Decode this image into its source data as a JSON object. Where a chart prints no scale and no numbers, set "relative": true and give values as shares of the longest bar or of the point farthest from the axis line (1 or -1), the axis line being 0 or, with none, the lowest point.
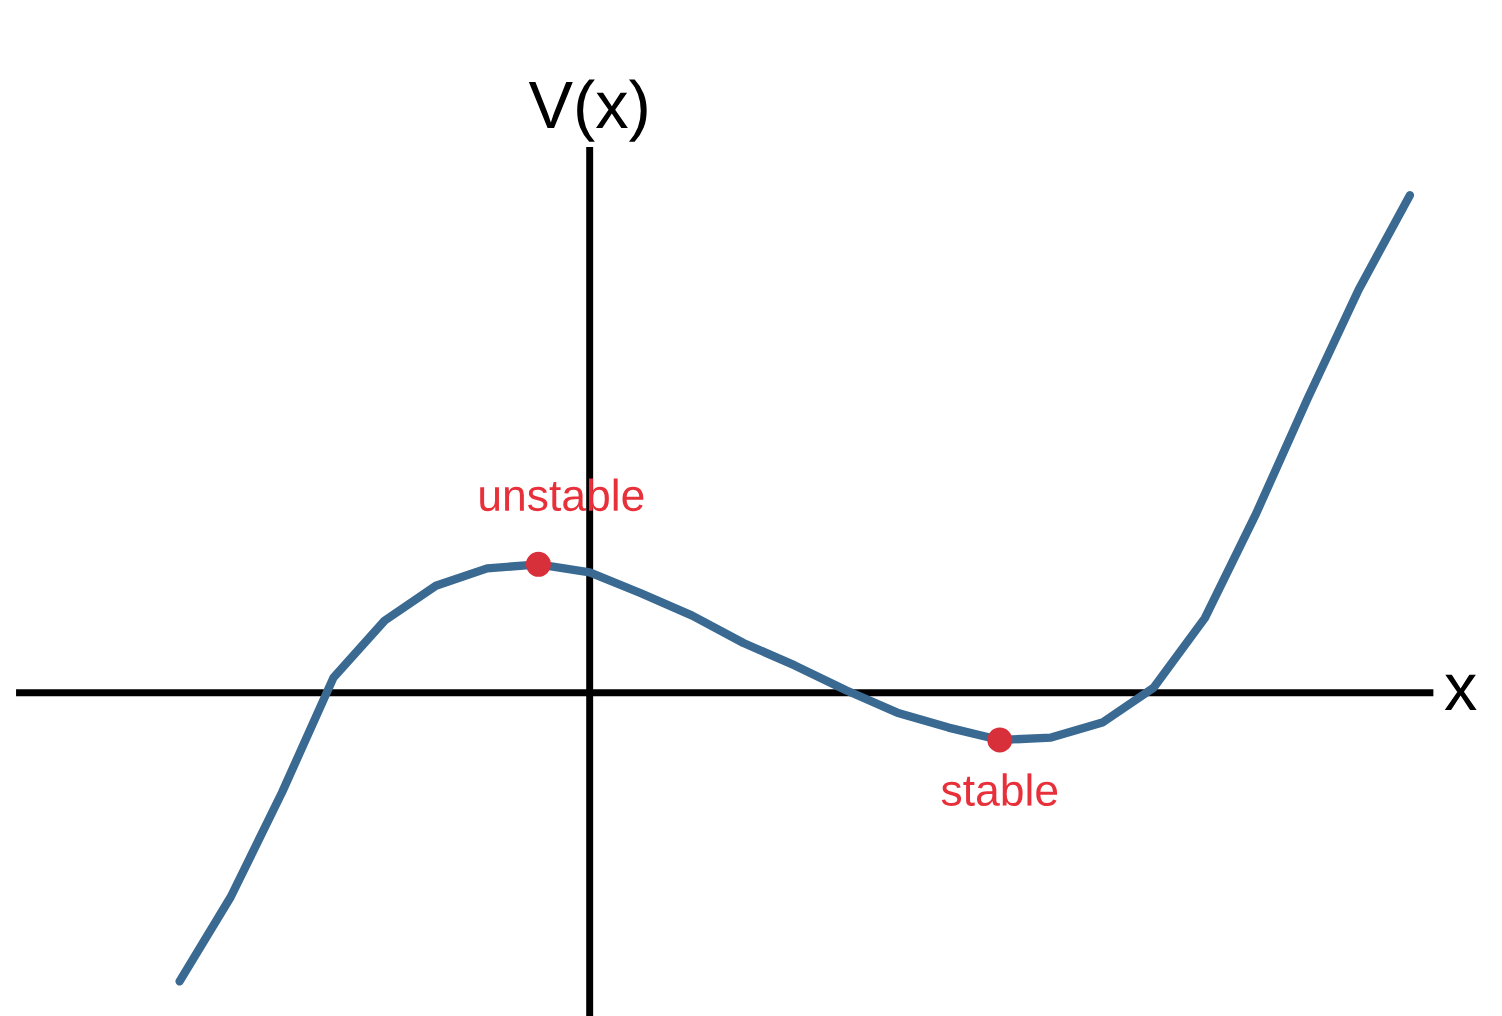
{
  "chart_data": {
    "type": "line",
    "relative": true,
    "xlabel": "x",
    "ylabel": "V(x)",
    "marker": "none",
    "line_style": "solid",
    "categories": [
      null,
      null,
      null,
      null,
      null,
      null,
      null,
      null,
      null,
      null,
      null,
      null,
      null,
      null,
      null,
      null,
      null,
      null,
      null,
      null,
      null,
      null,
      null,
      null,
      null
    ],
    "series": [
      {
        "color": "#3a6a92",
        "values": [
          -0.58,
          -0.41,
          -0.2,
          0.03,
          0.145,
          0.215,
          0.25,
          0.258,
          0.242,
          0.2,
          0.155,
          0.1,
          0.055,
          0.005,
          -0.04,
          -0.07,
          -0.095,
          -0.09,
          -0.06,
          0.01,
          0.15,
          0.36,
          0.59,
          0.81,
          1.0
        ]
      }
    ],
    "annotations": [
      {
        "text": "unstable",
        "y": 0.258
      },
      {
        "text": "stable",
        "y": -0.095
      }
    ]
  }
}
